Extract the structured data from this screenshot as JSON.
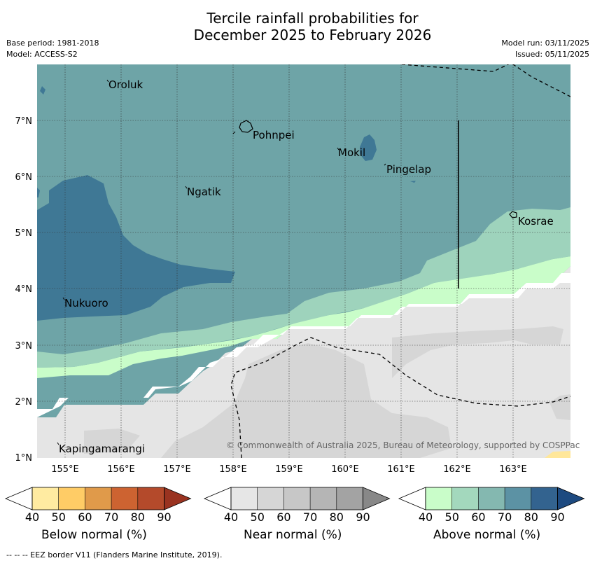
{
  "title": {
    "line1": "Tercile rainfall probabilities for",
    "line2": "December 2025 to February 2026"
  },
  "meta": {
    "base_period": "Base period: 1981-2018",
    "model": "Model: ACCESS-S2",
    "model_run": "Model run: 03/11/2025",
    "issued": "Issued: 05/11/2025"
  },
  "map": {
    "lon_ticks": [
      "155°E",
      "156°E",
      "157°E",
      "158°E",
      "159°E",
      "160°E",
      "161°E",
      "162°E",
      "163°E"
    ],
    "lat_ticks": [
      "7°N",
      "6°N",
      "5°N",
      "4°N",
      "3°N",
      "2°N",
      "1°N"
    ],
    "places": [
      {
        "name": "Oroluk"
      },
      {
        "name": "Pohnpei"
      },
      {
        "name": "Mokil"
      },
      {
        "name": "Pingelap"
      },
      {
        "name": "Ngatik"
      },
      {
        "name": "Kosrae"
      },
      {
        "name": "Nukuoro"
      },
      {
        "name": "Kapingamarangi"
      }
    ],
    "copyright": "© Commonwealth of Australia 2025, Bureau of Meteorology, supported by COSPPac",
    "colors": {
      "ocean": "#6ea4a7",
      "above70": "#6ea4a7",
      "above80": "#3f7895",
      "above60": "#9ed3bc",
      "above50": "#c9fdc9",
      "near40": "#e5e5e5",
      "near50": "#d6d6d6",
      "below50": "#ffe79a"
    }
  },
  "legend": {
    "below": {
      "title": "Below normal (%)",
      "ticks": [
        "40",
        "50",
        "60",
        "70",
        "80",
        "90"
      ],
      "colors": [
        "#ffffff",
        "#ffeba1",
        "#ffcc66",
        "#e09a4a",
        "#cd6331",
        "#b44a2b",
        "#9a3320"
      ]
    },
    "near": {
      "title": "Near normal (%)",
      "ticks": [
        "40",
        "50",
        "60",
        "70",
        "80",
        "90"
      ],
      "colors": [
        "#ffffff",
        "#e6e6e6",
        "#d6d6d6",
        "#c7c7c7",
        "#b5b5b5",
        "#a3a3a3",
        "#888888"
      ]
    },
    "above": {
      "title": "Above normal (%)",
      "ticks": [
        "40",
        "50",
        "60",
        "70",
        "80",
        "90"
      ],
      "colors": [
        "#ffffff",
        "#c9fdc9",
        "#a3d8bd",
        "#84b8b0",
        "#5c92a4",
        "#33638f",
        "#1d4a80"
      ]
    }
  },
  "footer": "--  --  -- EEZ border V11 (Flanders Marine Institute, 2019)."
}
